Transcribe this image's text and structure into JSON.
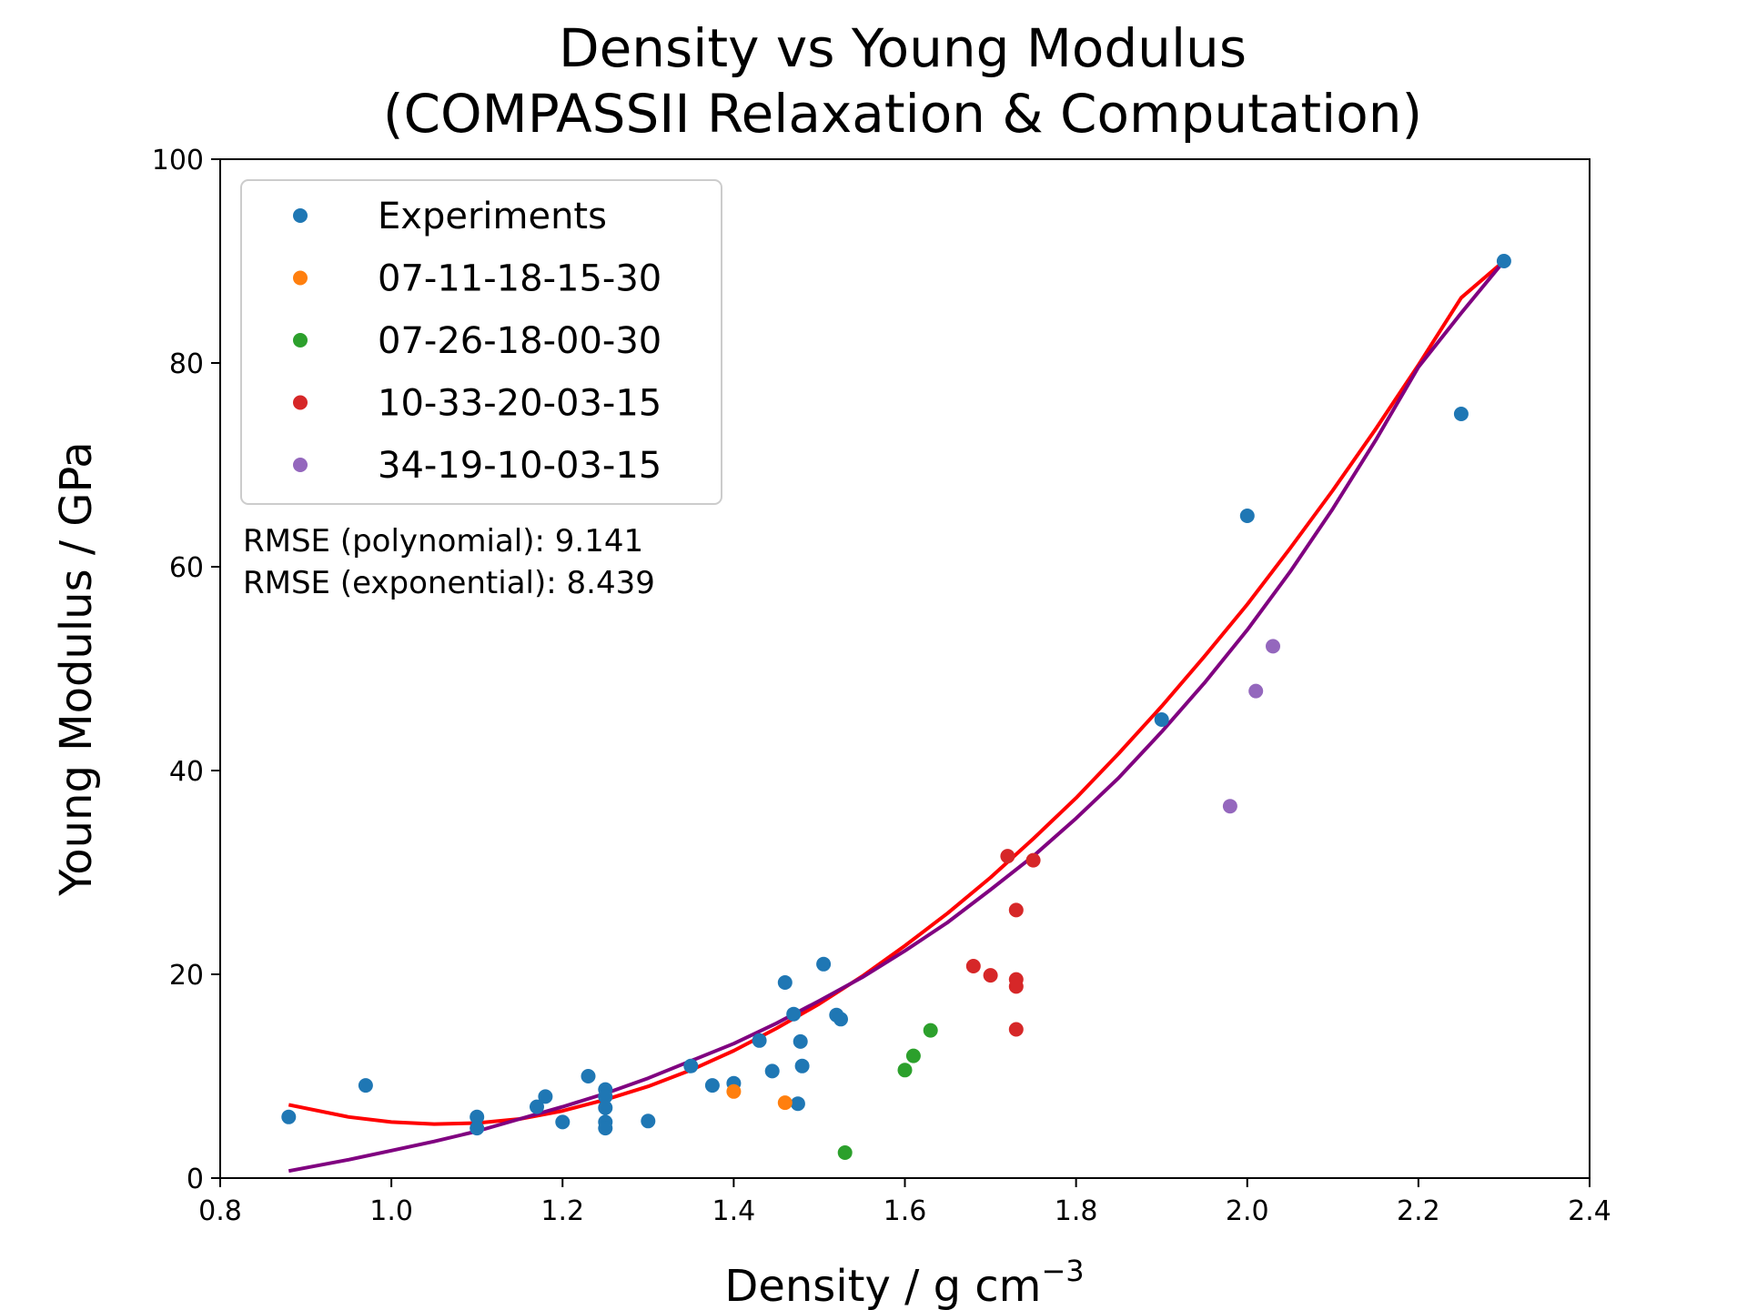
{
  "chart_data": {
    "type": "scatter",
    "title": [
      "Density vs Young Modulus",
      "(COMPASSII Relaxation & Computation)"
    ],
    "xlabel": "Density / g cm",
    "xlabel_superscript": "−3",
    "ylabel": "Young Modulus / GPa",
    "xlim": [
      0.8,
      2.4
    ],
    "ylim": [
      0,
      100
    ],
    "xticks": [
      "0.8",
      "1.0",
      "1.2",
      "1.4",
      "1.6",
      "1.8",
      "2.0",
      "2.2",
      "2.4"
    ],
    "yticks": [
      "0",
      "20",
      "40",
      "60",
      "80",
      "100"
    ],
    "grid": false,
    "legend_position": "upper-left",
    "series": [
      {
        "name": "Experiments",
        "color": "#1f77b4",
        "points": [
          [
            0.88,
            6.0
          ],
          [
            0.97,
            9.1
          ],
          [
            1.1,
            6.0
          ],
          [
            1.1,
            4.9
          ],
          [
            1.17,
            7.0
          ],
          [
            1.18,
            8.0
          ],
          [
            1.2,
            5.5
          ],
          [
            1.23,
            10.0
          ],
          [
            1.25,
            8.7
          ],
          [
            1.25,
            8.0
          ],
          [
            1.25,
            6.9
          ],
          [
            1.25,
            5.5
          ],
          [
            1.25,
            4.9
          ],
          [
            1.3,
            5.6
          ],
          [
            1.35,
            11.0
          ],
          [
            1.375,
            9.1
          ],
          [
            1.4,
            9.3
          ],
          [
            1.43,
            13.5
          ],
          [
            1.445,
            10.5
          ],
          [
            1.46,
            19.2
          ],
          [
            1.47,
            16.1
          ],
          [
            1.475,
            7.3
          ],
          [
            1.478,
            13.4
          ],
          [
            1.48,
            11.0
          ],
          [
            1.505,
            21.0
          ],
          [
            1.52,
            16.0
          ],
          [
            1.525,
            15.6
          ],
          [
            1.9,
            45.0
          ],
          [
            2.0,
            65.0
          ],
          [
            2.25,
            75.0
          ],
          [
            2.3,
            90.0
          ]
        ]
      },
      {
        "name": "07-11-18-15-30",
        "color": "#ff7f0e",
        "points": [
          [
            1.4,
            8.5
          ],
          [
            1.46,
            7.4
          ]
        ]
      },
      {
        "name": "07-26-18-00-30",
        "color": "#2ca02c",
        "points": [
          [
            1.53,
            2.5
          ],
          [
            1.6,
            10.6
          ],
          [
            1.61,
            12.0
          ],
          [
            1.63,
            14.5
          ]
        ]
      },
      {
        "name": "10-33-20-03-15",
        "color": "#d62728",
        "points": [
          [
            1.68,
            20.8
          ],
          [
            1.7,
            19.9
          ],
          [
            1.72,
            31.6
          ],
          [
            1.73,
            26.3
          ],
          [
            1.73,
            19.5
          ],
          [
            1.73,
            18.8
          ],
          [
            1.73,
            14.6
          ],
          [
            1.75,
            31.2
          ]
        ]
      },
      {
        "name": "34-19-10-03-15",
        "color": "#9467bd",
        "points": [
          [
            1.98,
            36.5
          ],
          [
            2.01,
            47.8
          ],
          [
            2.03,
            52.2
          ]
        ]
      }
    ],
    "fits": [
      {
        "kind": "polynomial",
        "color": "#ff0000",
        "points": [
          [
            0.88,
            7.2
          ],
          [
            0.95,
            6.0
          ],
          [
            1.0,
            5.5
          ],
          [
            1.05,
            5.3
          ],
          [
            1.1,
            5.4
          ],
          [
            1.15,
            5.8
          ],
          [
            1.2,
            6.6
          ],
          [
            1.25,
            7.7
          ],
          [
            1.3,
            9.0
          ],
          [
            1.35,
            10.6
          ],
          [
            1.4,
            12.5
          ],
          [
            1.45,
            14.7
          ],
          [
            1.5,
            17.1
          ],
          [
            1.55,
            19.8
          ],
          [
            1.6,
            22.8
          ],
          [
            1.65,
            26.0
          ],
          [
            1.7,
            29.5
          ],
          [
            1.75,
            33.3
          ],
          [
            1.8,
            37.3
          ],
          [
            1.85,
            41.7
          ],
          [
            1.9,
            46.3
          ],
          [
            1.95,
            51.2
          ],
          [
            2.0,
            56.3
          ],
          [
            2.05,
            61.8
          ],
          [
            2.1,
            67.5
          ],
          [
            2.15,
            73.5
          ],
          [
            2.2,
            79.8
          ],
          [
            2.25,
            86.4
          ],
          [
            2.3,
            90.0
          ]
        ]
      },
      {
        "kind": "exponential",
        "color": "#800080",
        "points": [
          [
            0.88,
            0.7
          ],
          [
            0.95,
            1.8
          ],
          [
            1.0,
            2.7
          ],
          [
            1.05,
            3.6
          ],
          [
            1.1,
            4.6
          ],
          [
            1.15,
            5.8
          ],
          [
            1.2,
            7.0
          ],
          [
            1.25,
            8.3
          ],
          [
            1.3,
            9.8
          ],
          [
            1.35,
            11.5
          ],
          [
            1.4,
            13.2
          ],
          [
            1.45,
            15.2
          ],
          [
            1.5,
            17.4
          ],
          [
            1.55,
            19.7
          ],
          [
            1.6,
            22.3
          ],
          [
            1.65,
            25.1
          ],
          [
            1.7,
            28.3
          ],
          [
            1.75,
            31.6
          ],
          [
            1.8,
            35.3
          ],
          [
            1.85,
            39.3
          ],
          [
            1.9,
            43.8
          ],
          [
            1.95,
            48.6
          ],
          [
            2.0,
            53.8
          ],
          [
            2.05,
            59.5
          ],
          [
            2.1,
            65.7
          ],
          [
            2.15,
            72.4
          ],
          [
            2.2,
            79.6
          ],
          [
            2.25,
            84.9
          ],
          [
            2.3,
            90.0
          ]
        ]
      }
    ],
    "annotations": [
      "RMSE (polynomial): 9.141",
      "RMSE (exponential): 8.439"
    ]
  }
}
